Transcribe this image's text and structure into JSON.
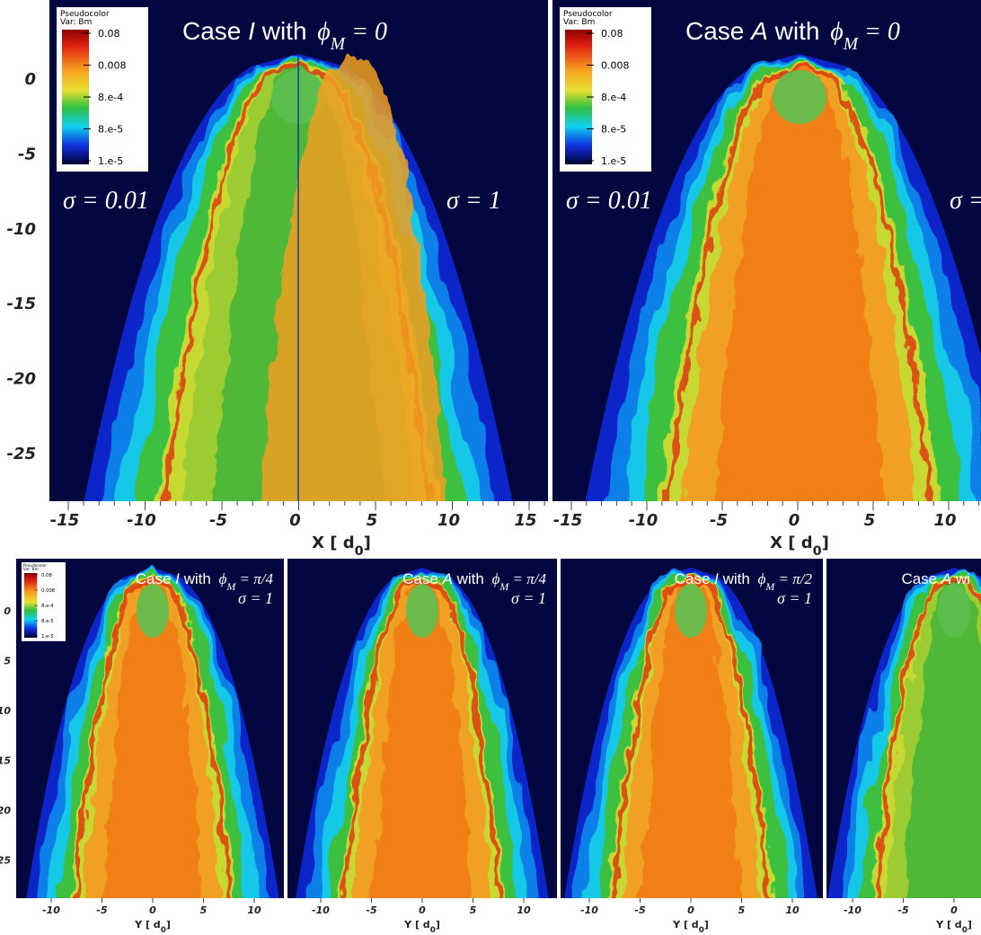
{
  "top_yticks": [
    "0",
    "-5",
    "-10",
    "-15",
    "-20",
    "-25"
  ],
  "bottom_yticks": [
    "0",
    "5",
    "10",
    "15",
    "20",
    "25"
  ],
  "top_panels": [
    {
      "title": [
        "Case ",
        "I",
        " with ",
        "ϕ",
        "M",
        " = 0"
      ],
      "sigma_left": "σ = 0.01",
      "sigma_right": "σ = 1",
      "colorbar": {
        "title": "Pseudocolor",
        "var": "Var: Bm",
        "labels": [
          "0.08",
          "0.008",
          "8.e-4",
          "8.e-5",
          "1.e-5"
        ]
      },
      "xticks": [
        "-15",
        "-10",
        "-5",
        "0",
        "5",
        "10",
        "15"
      ],
      "xlabel": [
        "X [ d",
        "0",
        "]"
      ]
    },
    {
      "title": [
        "Case ",
        "A",
        " with ",
        "ϕ",
        "M",
        " = 0"
      ],
      "sigma_left": "σ = 0.01",
      "sigma_right": "σ =",
      "colorbar": {
        "title": "Pseudocolor",
        "var": "Var: Bm",
        "labels": [
          "0.08",
          "0.008",
          "8.e-4",
          "8.e-5",
          "1.e-5"
        ]
      },
      "xticks": [
        "-15",
        "-10",
        "-5",
        "0",
        "5",
        "10"
      ],
      "xlabel": [
        "X [ d",
        "0",
        "]"
      ]
    }
  ],
  "bottom_panels": [
    {
      "title": [
        "Case ",
        "I",
        " with ",
        "ϕ",
        "M",
        " = π/4"
      ],
      "sigma": "σ = 1",
      "colorbar": {
        "title": "Pseudocolor",
        "var": "Var: Bm",
        "labels": [
          "0.08",
          "0.008",
          "8.e-4",
          "8.e-5",
          "1.e-5"
        ]
      },
      "xticks": [
        "-10",
        "-5",
        "0",
        "5",
        "10"
      ],
      "xlabel": [
        "Y [ d",
        "0",
        "]"
      ]
    },
    {
      "title": [
        "Case ",
        "A",
        " with ",
        "ϕ",
        "M",
        " = π/4"
      ],
      "sigma": "σ = 1",
      "xticks": [
        "-10",
        "-5",
        "0",
        "5",
        "10"
      ],
      "xlabel": [
        "Y [ d",
        "0",
        "]"
      ]
    },
    {
      "title": [
        "Case ",
        "I",
        " with ",
        "ϕ",
        "M",
        " = π/2"
      ],
      "sigma": "σ = 1",
      "xticks": [
        "-10",
        "-5",
        "0",
        "5",
        "10"
      ],
      "xlabel": [
        "Y [ d",
        "0",
        "]"
      ]
    },
    {
      "title": [
        "Case ",
        "A",
        " wi"
      ],
      "xticks": [
        "-10",
        "-5",
        "0"
      ],
      "xlabel": [
        "Y [ d",
        "0",
        "]"
      ]
    }
  ]
}
